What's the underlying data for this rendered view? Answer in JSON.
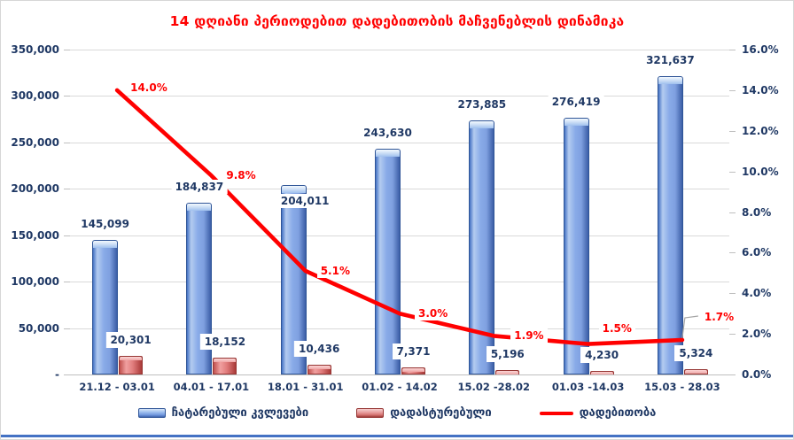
{
  "chart_data": {
    "type": "combo-bar-line",
    "title": "14 დღიანი პერიოდებით დადებითობის მაჩვენებლის დინამიკა",
    "title_color": "#FF0000",
    "text_color": "#1F3864",
    "grid": true,
    "legend_position": "bottom",
    "categories": [
      "21.12 - 03.01",
      "04.01 - 17.01",
      "18.01 - 31.01",
      "01.02 - 14.02",
      "15.02 -28.02",
      "01.03 -14.03",
      "15.03 - 28.03"
    ],
    "series": [
      {
        "name": "ჩატარებული კვლევები",
        "type": "bar",
        "axis": "left",
        "color": "#7FA0E0",
        "values": [
          145099,
          184837,
          204011,
          243630,
          273885,
          276419,
          321637
        ],
        "labels": [
          "145,099",
          "184,837",
          "204,011",
          "243,630",
          "273,885",
          "276,419",
          "321,637"
        ]
      },
      {
        "name": "დადასტურებული",
        "type": "bar",
        "axis": "left",
        "color": "#D4716F",
        "values": [
          20301,
          18152,
          10436,
          7371,
          5196,
          4230,
          5324
        ],
        "labels": [
          "20,301",
          "18,152",
          "10,436",
          "7,371",
          "5,196",
          "4,230",
          "5,324"
        ]
      },
      {
        "name": "დადებითობა",
        "type": "line",
        "axis": "right",
        "color": "#FF0000",
        "values": [
          14.0,
          9.8,
          5.1,
          3.0,
          1.9,
          1.5,
          1.7
        ],
        "labels": [
          "14.0%",
          "9.8%",
          "5.1%",
          "3.0%",
          "1.9%",
          "1.5%",
          "1.7%"
        ]
      }
    ],
    "left_axis": {
      "min": 0,
      "max": 350000,
      "step": 50000,
      "tick_labels": [
        "350,000",
        "300,000",
        "250,000",
        "200,000",
        "150,000",
        "100,000",
        "50,000",
        "-"
      ]
    },
    "right_axis": {
      "min": 0,
      "max": 16,
      "step": 2,
      "tick_labels": [
        "16.0%",
        "14.0%",
        "12.0%",
        "10.0%",
        "8.0%",
        "6.0%",
        "4.0%",
        "2.0%",
        "0.0%"
      ]
    },
    "gridline_color": "#D9D9D9",
    "page_bottom_rule_color": "#4472C4"
  }
}
